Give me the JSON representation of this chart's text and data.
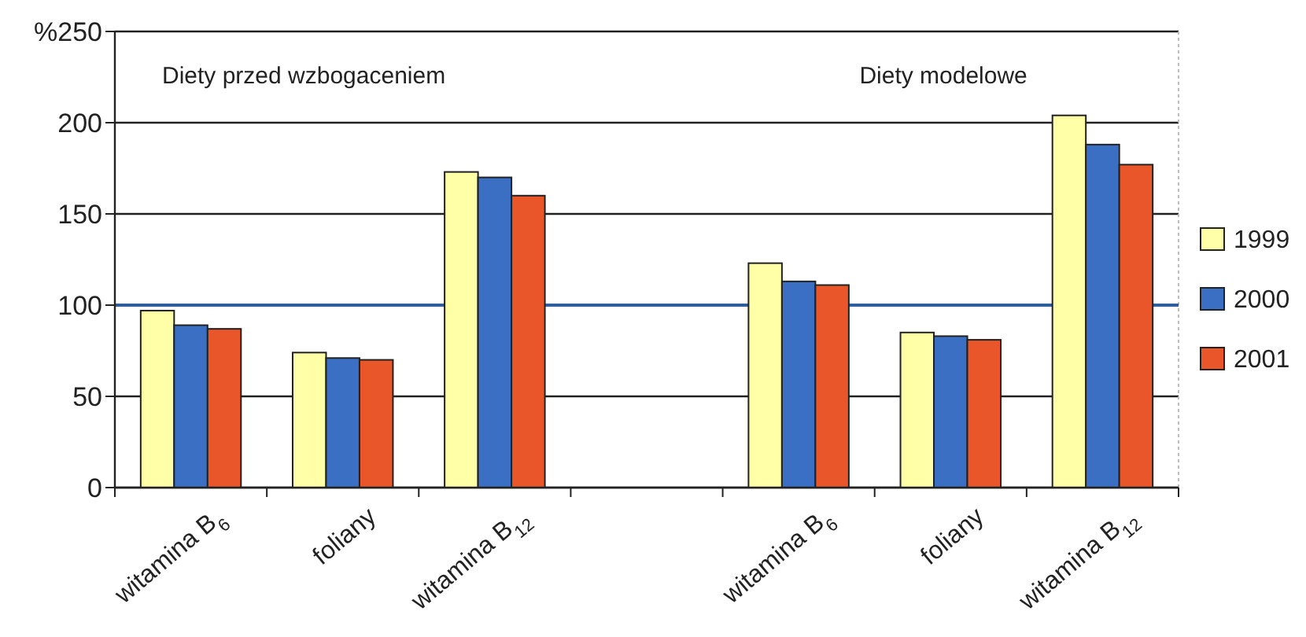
{
  "chart_data": {
    "type": "bar",
    "categories": [
      "witamina B$_{6}$",
      "foliany",
      "witamina B$_{12}$",
      null,
      "witamina B$_{6}$",
      "foliany",
      "witamina B$_{12}$"
    ],
    "series": [
      {
        "name": "1999",
        "color": "#ffffa8",
        "values": [
          97,
          74,
          173,
          null,
          123,
          85,
          204
        ]
      },
      {
        "name": "2000",
        "color": "#3a6fc4",
        "values": [
          89,
          71,
          170,
          null,
          113,
          83,
          188
        ]
      },
      {
        "name": "2001",
        "color": "#e8562a",
        "values": [
          87,
          70,
          160,
          null,
          111,
          81,
          177
        ]
      }
    ],
    "ylim": [
      0,
      250
    ],
    "yticks": [
      0,
      50,
      100,
      150,
      200,
      {
        "value": 250,
        "label": "%250"
      }
    ],
    "grid": "y",
    "legend": "right",
    "ref_lines": [
      {
        "axis": "y",
        "value": 100,
        "color": "#2e5e9e"
      }
    ],
    "annotations": [
      "Diety przed wzbogaceniem",
      "Diety modelowe"
    ]
  }
}
